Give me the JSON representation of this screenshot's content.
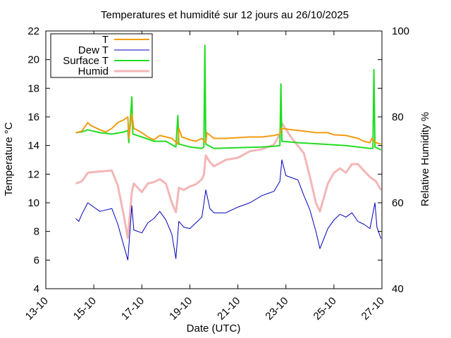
{
  "chart_data": {
    "type": "line",
    "title": "Temperatures et humidité sur 12 jours au 26/10/2025",
    "xlabel": "Date (UTC)",
    "ylabel": "Temperature °C",
    "y2label": "Relative Humidity %",
    "x_range": [
      "2025-10-13",
      "2025-10-27 00:00"
    ],
    "x_ticks": [
      "13-10",
      "15-10",
      "17-10",
      "19-10",
      "21-10",
      "23-10",
      "25-10",
      "27-10"
    ],
    "ylim": [
      4,
      22
    ],
    "y_ticks": [
      "4",
      "6",
      "8",
      "10",
      "12",
      "14",
      "16",
      "18",
      "20",
      "22"
    ],
    "y2lim": [
      40,
      100
    ],
    "y2_ticks": [
      "40",
      "60",
      "80",
      "100"
    ],
    "grid": false,
    "legend_position": "top-left",
    "series": [
      {
        "name": "T",
        "axis": "left",
        "color": "#f39c12",
        "points": [
          [
            "2025-10-14 06:00",
            14.9
          ],
          [
            "2025-10-14 12:00",
            15.0
          ],
          [
            "2025-10-14 18:00",
            15.6
          ],
          [
            "2025-10-14 21:00",
            15.4
          ],
          [
            "2025-10-15 06:00",
            15.1
          ],
          [
            "2025-10-15 12:00",
            14.95
          ],
          [
            "2025-10-15 18:00",
            15.2
          ],
          [
            "2025-10-16 00:00",
            15.6
          ],
          [
            "2025-10-16 06:00",
            15.8
          ],
          [
            "2025-10-16 10:00",
            16.0
          ],
          [
            "2025-10-16 11:00",
            14.5
          ],
          [
            "2025-10-16 14:00",
            16.2
          ],
          [
            "2025-10-16 16:00",
            15.2
          ],
          [
            "2025-10-17 00:00",
            14.9
          ],
          [
            "2025-10-17 06:00",
            14.6
          ],
          [
            "2025-10-17 12:00",
            14.4
          ],
          [
            "2025-10-17 18:00",
            14.7
          ],
          [
            "2025-10-18 00:00",
            14.6
          ],
          [
            "2025-10-18 06:00",
            14.5
          ],
          [
            "2025-10-18 12:00",
            14.1
          ],
          [
            "2025-10-18 13:00",
            15.2
          ],
          [
            "2025-10-18 16:00",
            14.6
          ],
          [
            "2025-10-19 00:00",
            14.4
          ],
          [
            "2025-10-19 06:00",
            14.3
          ],
          [
            "2025-10-19 12:00",
            14.5
          ],
          [
            "2025-10-19 16:00",
            14.2
          ],
          [
            "2025-10-19 17:00",
            14.9
          ],
          [
            "2025-10-20 00:00",
            14.5
          ],
          [
            "2025-10-20 12:00",
            14.5
          ],
          [
            "2025-10-21 00:00",
            14.55
          ],
          [
            "2025-10-21 12:00",
            14.6
          ],
          [
            "2025-10-22 00:00",
            14.6
          ],
          [
            "2025-10-22 12:00",
            14.7
          ],
          [
            "2025-10-22 18:00",
            14.8
          ],
          [
            "2025-10-22 19:00",
            15.2
          ],
          [
            "2025-10-23 06:00",
            15.1
          ],
          [
            "2025-10-23 18:00",
            15.0
          ],
          [
            "2025-10-24 06:00",
            14.9
          ],
          [
            "2025-10-24 18:00",
            14.9
          ],
          [
            "2025-10-25 00:00",
            14.75
          ],
          [
            "2025-10-25 12:00",
            14.7
          ],
          [
            "2025-10-26 00:00",
            14.5
          ],
          [
            "2025-10-26 06:00",
            14.3
          ],
          [
            "2025-10-26 12:00",
            14.2
          ],
          [
            "2025-10-26 14:00",
            14.5
          ],
          [
            "2025-10-26 18:00",
            14.2
          ],
          [
            "2025-10-26 23:00",
            14.1
          ]
        ]
      },
      {
        "name": "Dew T",
        "axis": "left",
        "color": "#0000bb",
        "points": [
          [
            "2025-10-14 06:00",
            8.9
          ],
          [
            "2025-10-14 09:00",
            8.7
          ],
          [
            "2025-10-14 12:00",
            9.2
          ],
          [
            "2025-10-14 18:00",
            10.0
          ],
          [
            "2025-10-15 00:00",
            9.7
          ],
          [
            "2025-10-15 06:00",
            9.4
          ],
          [
            "2025-10-15 12:00",
            9.5
          ],
          [
            "2025-10-15 18:00",
            9.6
          ],
          [
            "2025-10-16 00:00",
            8.5
          ],
          [
            "2025-10-16 06:00",
            7.0
          ],
          [
            "2025-10-16 10:00",
            6.0
          ],
          [
            "2025-10-16 14:00",
            9.8
          ],
          [
            "2025-10-16 16:00",
            8.1
          ],
          [
            "2025-10-17 00:00",
            7.9
          ],
          [
            "2025-10-17 06:00",
            8.6
          ],
          [
            "2025-10-17 12:00",
            8.9
          ],
          [
            "2025-10-17 18:00",
            9.4
          ],
          [
            "2025-10-18 00:00",
            8.8
          ],
          [
            "2025-10-18 06:00",
            7.8
          ],
          [
            "2025-10-18 10:00",
            6.1
          ],
          [
            "2025-10-18 13:00",
            8.7
          ],
          [
            "2025-10-18 18:00",
            8.3
          ],
          [
            "2025-10-19 00:00",
            8.2
          ],
          [
            "2025-10-19 06:00",
            8.6
          ],
          [
            "2025-10-19 12:00",
            9.0
          ],
          [
            "2025-10-19 16:00",
            10.9
          ],
          [
            "2025-10-19 20:00",
            9.6
          ],
          [
            "2025-10-20 00:00",
            9.3
          ],
          [
            "2025-10-20 12:00",
            9.3
          ],
          [
            "2025-10-21 00:00",
            9.7
          ],
          [
            "2025-10-21 12:00",
            10.0
          ],
          [
            "2025-10-22 00:00",
            10.5
          ],
          [
            "2025-10-22 12:00",
            10.8
          ],
          [
            "2025-10-22 18:00",
            11.5
          ],
          [
            "2025-10-22 20:00",
            13.0
          ],
          [
            "2025-10-23 00:00",
            11.9
          ],
          [
            "2025-10-23 12:00",
            11.6
          ],
          [
            "2025-10-23 18:00",
            10.5
          ],
          [
            "2025-10-24 00:00",
            9.5
          ],
          [
            "2025-10-24 06:00",
            8.0
          ],
          [
            "2025-10-24 10:00",
            6.8
          ],
          [
            "2025-10-24 18:00",
            8.2
          ],
          [
            "2025-10-25 00:00",
            8.8
          ],
          [
            "2025-10-25 06:00",
            9.2
          ],
          [
            "2025-10-25 12:00",
            9.0
          ],
          [
            "2025-10-25 18:00",
            9.3
          ],
          [
            "2025-10-26 00:00",
            8.7
          ],
          [
            "2025-10-26 06:00",
            8.5
          ],
          [
            "2025-10-26 12:00",
            8.2
          ],
          [
            "2025-10-26 17:00",
            10.0
          ],
          [
            "2025-10-26 19:00",
            8.3
          ],
          [
            "2025-10-26 23:00",
            7.5
          ]
        ]
      },
      {
        "name": "Surface T",
        "axis": "left",
        "color": "#22dd22",
        "points": [
          [
            "2025-10-14 06:00",
            14.9
          ],
          [
            "2025-10-14 12:00",
            14.95
          ],
          [
            "2025-10-14 18:00",
            15.1
          ],
          [
            "2025-10-15 06:00",
            14.9
          ],
          [
            "2025-10-15 18:00",
            14.8
          ],
          [
            "2025-10-16 06:00",
            14.95
          ],
          [
            "2025-10-16 10:00",
            15.05
          ],
          [
            "2025-10-16 11:00",
            14.2
          ],
          [
            "2025-10-16 14:00",
            17.4
          ],
          [
            "2025-10-16 15:00",
            14.8
          ],
          [
            "2025-10-17 00:00",
            14.6
          ],
          [
            "2025-10-17 12:00",
            14.3
          ],
          [
            "2025-10-18 00:00",
            14.3
          ],
          [
            "2025-10-18 10:00",
            13.9
          ],
          [
            "2025-10-18 12:00",
            16.1
          ],
          [
            "2025-10-18 13:00",
            14.1
          ],
          [
            "2025-10-19 00:00",
            13.9
          ],
          [
            "2025-10-19 12:00",
            13.8
          ],
          [
            "2025-10-19 14:00",
            13.9
          ],
          [
            "2025-10-19 15:00",
            21.0
          ],
          [
            "2025-10-19 16:00",
            14.1
          ],
          [
            "2025-10-20 00:00",
            13.8
          ],
          [
            "2025-10-21 00:00",
            13.85
          ],
          [
            "2025-10-22 00:00",
            13.9
          ],
          [
            "2025-10-22 12:00",
            13.95
          ],
          [
            "2025-10-22 18:00",
            14.0
          ],
          [
            "2025-10-22 19:00",
            18.3
          ],
          [
            "2025-10-22 20:00",
            14.3
          ],
          [
            "2025-10-23 12:00",
            14.2
          ],
          [
            "2025-10-24 12:00",
            14.1
          ],
          [
            "2025-10-25 12:00",
            14.0
          ],
          [
            "2025-10-26 00:00",
            13.9
          ],
          [
            "2025-10-26 12:00",
            13.8
          ],
          [
            "2025-10-26 15:00",
            13.8
          ],
          [
            "2025-10-26 16:00",
            19.3
          ],
          [
            "2025-10-26 17:00",
            13.9
          ],
          [
            "2025-10-26 23:00",
            13.7
          ]
        ]
      },
      {
        "name": "Humid",
        "axis": "right",
        "color": "#f4b6b6",
        "points": [
          [
            "2025-10-14 06:00",
            64.5
          ],
          [
            "2025-10-14 12:00",
            65.0
          ],
          [
            "2025-10-14 18:00",
            67.0
          ],
          [
            "2025-10-15 06:00",
            67.3
          ],
          [
            "2025-10-15 18:00",
            67.5
          ],
          [
            "2025-10-16 00:00",
            64.0
          ],
          [
            "2025-10-16 06:00",
            57.0
          ],
          [
            "2025-10-16 10:00",
            51.8
          ],
          [
            "2025-10-16 14:00",
            62.5
          ],
          [
            "2025-10-16 16:00",
            64.5
          ],
          [
            "2025-10-17 00:00",
            62.5
          ],
          [
            "2025-10-17 06:00",
            64.5
          ],
          [
            "2025-10-17 12:00",
            64.8
          ],
          [
            "2025-10-17 18:00",
            65.5
          ],
          [
            "2025-10-18 00:00",
            64.5
          ],
          [
            "2025-10-18 06:00",
            60.0
          ],
          [
            "2025-10-18 10:00",
            57.8
          ],
          [
            "2025-10-18 13:00",
            63.5
          ],
          [
            "2025-10-18 18:00",
            63.0
          ],
          [
            "2025-10-19 00:00",
            63.8
          ],
          [
            "2025-10-19 06:00",
            64.3
          ],
          [
            "2025-10-19 12:00",
            65.5
          ],
          [
            "2025-10-19 14:00",
            66.5
          ],
          [
            "2025-10-19 16:00",
            71.0
          ],
          [
            "2025-10-19 20:00",
            69.5
          ],
          [
            "2025-10-20 00:00",
            68.5
          ],
          [
            "2025-10-20 12:00",
            70.0
          ],
          [
            "2025-10-21 00:00",
            70.5
          ],
          [
            "2025-10-21 12:00",
            72.0
          ],
          [
            "2025-10-22 00:00",
            72.5
          ],
          [
            "2025-10-22 12:00",
            73.5
          ],
          [
            "2025-10-22 18:00",
            76.0
          ],
          [
            "2025-10-22 20:00",
            78.5
          ],
          [
            "2025-10-23 06:00",
            75.0
          ],
          [
            "2025-10-23 18:00",
            71.5
          ],
          [
            "2025-10-24 00:00",
            66.0
          ],
          [
            "2025-10-24 06:00",
            60.0
          ],
          [
            "2025-10-24 10:00",
            58.0
          ],
          [
            "2025-10-24 18:00",
            64.5
          ],
          [
            "2025-10-25 00:00",
            67.0
          ],
          [
            "2025-10-25 06:00",
            68.0
          ],
          [
            "2025-10-25 12:00",
            67.0
          ],
          [
            "2025-10-25 18:00",
            69.0
          ],
          [
            "2025-10-26 00:00",
            69.0
          ],
          [
            "2025-10-26 06:00",
            67.5
          ],
          [
            "2025-10-26 12:00",
            66.0
          ],
          [
            "2025-10-26 18:00",
            65.0
          ],
          [
            "2025-10-26 23:00",
            63.0
          ]
        ]
      }
    ]
  }
}
